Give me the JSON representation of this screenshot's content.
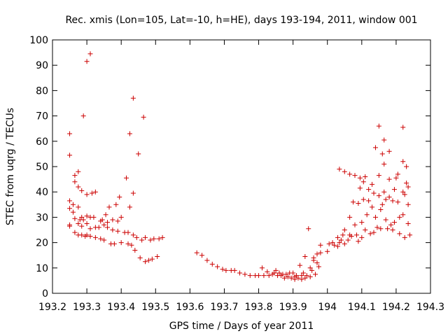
{
  "chart_data": {
    "type": "scatter",
    "title": "Rec. xmis (Lon=105, Lat=-10, h=HE), days 193-194, 2011, window 001",
    "xlabel": "GPS time / Days of year 2011",
    "ylabel": "STEC from uqrg / TECUs",
    "xlim": [
      193.2,
      194.3
    ],
    "ylim": [
      0,
      100
    ],
    "xticks": [
      193.2,
      193.3,
      193.4,
      193.5,
      193.6,
      193.7,
      193.8,
      193.9,
      194.0,
      194.1,
      194.2,
      194.3
    ],
    "xtick_labels": [
      "193.2",
      "193.3",
      "193.4",
      "193.5",
      "193.6",
      "193.7",
      "193.8",
      "193.9",
      "194",
      "194.1",
      "194.2",
      "194.3"
    ],
    "yticks": [
      0,
      10,
      20,
      30,
      40,
      50,
      60,
      70,
      80,
      90,
      100
    ],
    "ytick_labels": [
      "0",
      "10",
      "20",
      "30",
      "40",
      "50",
      "60",
      "70",
      "80",
      "90",
      "100"
    ],
    "grid": false,
    "marker": "+",
    "color": "#cc0000",
    "series": [
      {
        "points": [
          [
            193.25,
            63
          ],
          [
            193.25,
            54.5
          ],
          [
            193.25,
            36.5
          ],
          [
            193.25,
            33.5
          ],
          [
            193.25,
            27
          ],
          [
            193.25,
            26.5
          ],
          [
            193.26,
            32
          ],
          [
            193.26,
            35
          ],
          [
            193.265,
            46.5
          ],
          [
            193.265,
            44
          ],
          [
            193.265,
            29.5
          ],
          [
            193.265,
            24
          ],
          [
            193.275,
            48
          ],
          [
            193.275,
            42
          ],
          [
            193.275,
            34
          ],
          [
            193.275,
            27.5
          ],
          [
            193.275,
            23
          ],
          [
            193.28,
            29
          ],
          [
            193.285,
            40.5
          ],
          [
            193.285,
            30
          ],
          [
            193.285,
            26.5
          ],
          [
            193.285,
            23
          ],
          [
            193.29,
            70
          ],
          [
            193.29,
            29
          ],
          [
            193.295,
            22.5
          ],
          [
            193.3,
            91.5
          ],
          [
            193.3,
            39
          ],
          [
            193.3,
            30.5
          ],
          [
            193.3,
            27.5
          ],
          [
            193.3,
            23
          ],
          [
            193.31,
            94.5
          ],
          [
            193.31,
            30
          ],
          [
            193.31,
            25.5
          ],
          [
            193.31,
            22.5
          ],
          [
            193.315,
            39.5
          ],
          [
            193.32,
            30
          ],
          [
            193.325,
            40
          ],
          [
            193.325,
            26
          ],
          [
            193.325,
            22
          ],
          [
            193.335,
            26
          ],
          [
            193.34,
            28.5
          ],
          [
            193.34,
            21.5
          ],
          [
            193.345,
            29
          ],
          [
            193.35,
            27
          ],
          [
            193.35,
            21
          ],
          [
            193.355,
            31
          ],
          [
            193.36,
            28
          ],
          [
            193.36,
            26
          ],
          [
            193.365,
            34
          ],
          [
            193.37,
            19.5
          ],
          [
            193.375,
            29
          ],
          [
            193.375,
            25
          ],
          [
            193.38,
            19.5
          ],
          [
            193.385,
            35
          ],
          [
            193.39,
            24.5
          ],
          [
            193.39,
            28.5
          ],
          [
            193.395,
            38
          ],
          [
            193.4,
            30
          ],
          [
            193.4,
            20
          ],
          [
            193.41,
            24
          ],
          [
            193.415,
            45.5
          ],
          [
            193.42,
            19.5
          ],
          [
            193.42,
            24
          ],
          [
            193.425,
            63
          ],
          [
            193.425,
            34
          ],
          [
            193.43,
            19
          ],
          [
            193.435,
            77
          ],
          [
            193.435,
            39.5
          ],
          [
            193.435,
            23
          ],
          [
            193.44,
            17
          ],
          [
            193.445,
            22
          ],
          [
            193.45,
            55
          ],
          [
            193.455,
            14
          ],
          [
            193.46,
            21
          ],
          [
            193.465,
            69.5
          ],
          [
            193.47,
            12.5
          ],
          [
            193.47,
            22
          ],
          [
            193.48,
            13
          ],
          [
            193.485,
            21
          ],
          [
            193.49,
            13.5
          ],
          [
            193.495,
            21.5
          ],
          [
            193.505,
            14.5
          ],
          [
            193.51,
            21.5
          ],
          [
            193.52,
            22
          ]
        ]
      },
      {
        "points": [
          [
            193.62,
            16
          ],
          [
            193.635,
            15
          ],
          [
            193.65,
            13
          ],
          [
            193.665,
            11.5
          ],
          [
            193.68,
            10.5
          ],
          [
            193.695,
            9.5
          ],
          [
            193.705,
            9
          ],
          [
            193.72,
            9
          ],
          [
            193.73,
            9
          ],
          [
            193.745,
            8
          ],
          [
            193.76,
            7.5
          ],
          [
            193.775,
            7
          ],
          [
            193.79,
            7
          ],
          [
            193.8,
            7
          ],
          [
            193.81,
            10
          ],
          [
            193.815,
            7
          ],
          [
            193.825,
            8.5
          ],
          [
            193.83,
            7
          ],
          [
            193.84,
            7.5
          ],
          [
            193.845,
            8
          ],
          [
            193.85,
            9
          ],
          [
            193.855,
            7
          ],
          [
            193.86,
            8
          ],
          [
            193.865,
            7
          ],
          [
            193.87,
            7.5
          ],
          [
            193.875,
            6
          ],
          [
            193.88,
            7.5
          ],
          [
            193.885,
            6.5
          ],
          [
            193.89,
            8
          ],
          [
            193.895,
            6
          ],
          [
            193.9,
            8
          ],
          [
            193.905,
            6.5
          ],
          [
            193.905,
            5.5
          ],
          [
            193.91,
            7
          ],
          [
            193.915,
            6
          ],
          [
            193.92,
            11
          ],
          [
            193.925,
            7
          ],
          [
            193.925,
            5.5
          ],
          [
            193.93,
            8
          ],
          [
            193.935,
            14.5
          ],
          [
            193.935,
            6
          ],
          [
            193.94,
            7
          ],
          [
            193.945,
            25.5
          ],
          [
            193.95,
            10
          ],
          [
            193.95,
            6.5
          ],
          [
            193.955,
            9
          ],
          [
            193.96,
            14
          ],
          [
            193.96,
            13
          ],
          [
            193.965,
            7.5
          ],
          [
            193.97,
            12
          ],
          [
            193.97,
            15.5
          ],
          [
            193.975,
            10.5
          ],
          [
            193.98,
            19
          ],
          [
            193.98,
            16
          ]
        ]
      },
      {
        "points": [
          [
            194.0,
            16.5
          ],
          [
            194.005,
            19.5
          ],
          [
            194.015,
            20
          ],
          [
            194.02,
            19
          ],
          [
            194.03,
            22
          ],
          [
            194.03,
            18.5
          ],
          [
            194.035,
            49
          ],
          [
            194.035,
            20
          ],
          [
            194.04,
            21
          ],
          [
            194.045,
            23
          ],
          [
            194.05,
            48
          ],
          [
            194.05,
            25
          ],
          [
            194.05,
            19.5
          ],
          [
            194.06,
            21
          ],
          [
            194.065,
            47
          ],
          [
            194.065,
            30
          ],
          [
            194.065,
            23
          ],
          [
            194.07,
            22.5
          ],
          [
            194.075,
            36
          ],
          [
            194.08,
            46.5
          ],
          [
            194.08,
            27
          ],
          [
            194.085,
            23
          ],
          [
            194.09,
            35.5
          ],
          [
            194.09,
            20.5
          ],
          [
            194.095,
            45.5
          ],
          [
            194.095,
            41.5
          ],
          [
            194.1,
            28
          ],
          [
            194.1,
            22
          ],
          [
            194.105,
            44
          ],
          [
            194.105,
            37
          ],
          [
            194.11,
            46
          ],
          [
            194.11,
            25
          ],
          [
            194.115,
            31
          ],
          [
            194.12,
            41
          ],
          [
            194.12,
            36.5
          ],
          [
            194.125,
            23.5
          ],
          [
            194.13,
            43
          ],
          [
            194.13,
            34
          ],
          [
            194.135,
            39.5
          ],
          [
            194.135,
            24
          ],
          [
            194.14,
            57.5
          ],
          [
            194.14,
            30
          ],
          [
            194.145,
            26
          ],
          [
            194.15,
            66
          ],
          [
            194.15,
            46.5
          ],
          [
            194.15,
            38.5
          ],
          [
            194.155,
            33
          ],
          [
            194.155,
            25.5
          ],
          [
            194.16,
            55
          ],
          [
            194.16,
            35
          ],
          [
            194.165,
            60.5
          ],
          [
            194.165,
            51
          ],
          [
            194.165,
            40
          ],
          [
            194.17,
            37
          ],
          [
            194.17,
            29
          ],
          [
            194.175,
            25.5
          ],
          [
            194.18,
            56
          ],
          [
            194.18,
            45
          ],
          [
            194.18,
            38
          ],
          [
            194.185,
            27
          ],
          [
            194.19,
            36.5
          ],
          [
            194.19,
            25
          ],
          [
            194.195,
            41
          ],
          [
            194.195,
            28
          ],
          [
            194.2,
            45.5
          ],
          [
            194.205,
            47
          ],
          [
            194.205,
            36
          ],
          [
            194.21,
            30
          ],
          [
            194.21,
            23.5
          ],
          [
            194.22,
            65.5
          ],
          [
            194.22,
            52
          ],
          [
            194.22,
            40
          ],
          [
            194.22,
            31
          ],
          [
            194.225,
            39
          ],
          [
            194.225,
            22
          ],
          [
            194.23,
            50
          ],
          [
            194.23,
            43.5
          ],
          [
            194.235,
            42
          ],
          [
            194.235,
            35
          ],
          [
            194.235,
            27.5
          ],
          [
            194.24,
            23
          ]
        ]
      }
    ]
  }
}
